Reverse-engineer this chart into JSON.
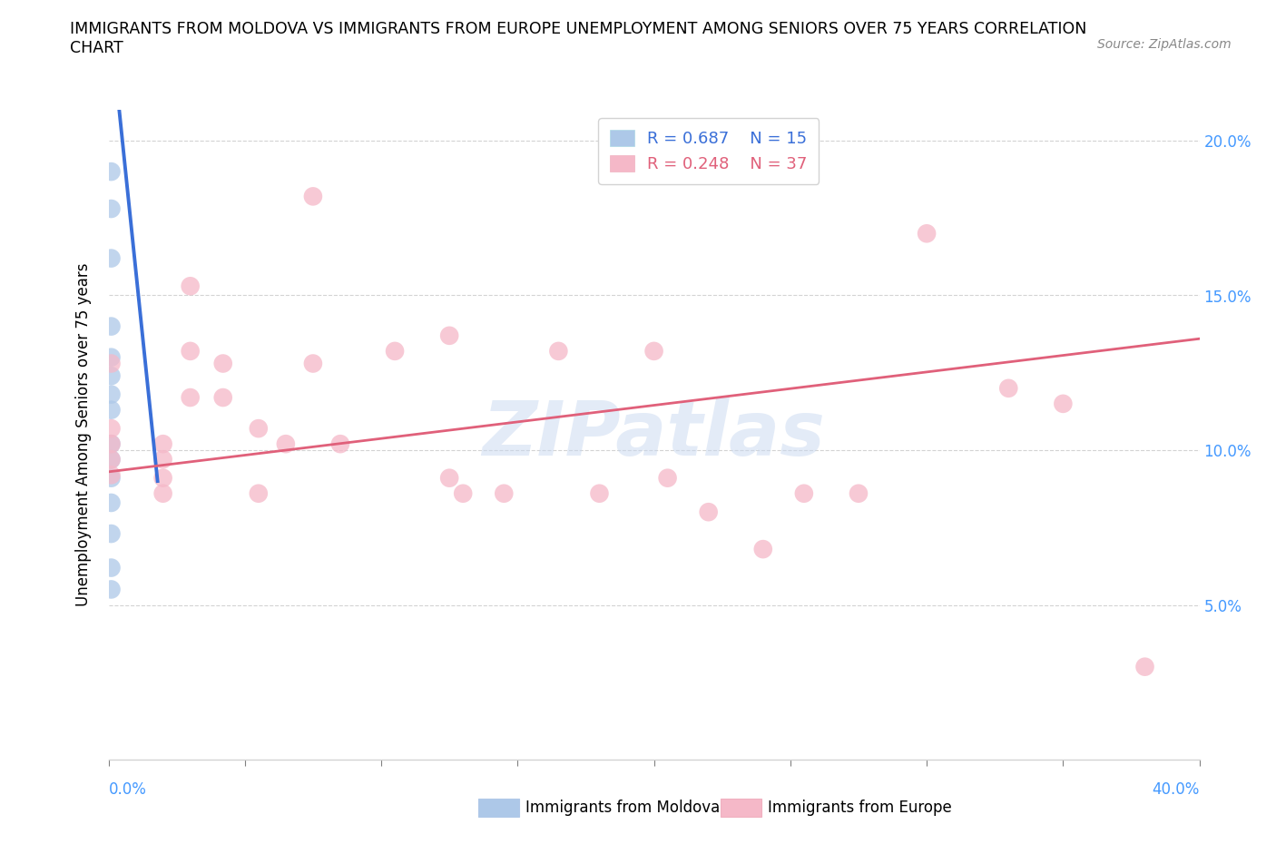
{
  "title_line1": "IMMIGRANTS FROM MOLDOVA VS IMMIGRANTS FROM EUROPE UNEMPLOYMENT AMONG SENIORS OVER 75 YEARS CORRELATION",
  "title_line2": "CHART",
  "source_text": "Source: ZipAtlas.com",
  "xlabel_bottom_left": "0.0%",
  "xlabel_bottom_right": "40.0%",
  "ylabel": "Unemployment Among Seniors over 75 years",
  "xmin": 0.0,
  "xmax": 0.4,
  "ymin": 0.0,
  "ymax": 0.21,
  "yticks": [
    0.05,
    0.1,
    0.15,
    0.2
  ],
  "ytick_labels": [
    "5.0%",
    "10.0%",
    "15.0%",
    "20.0%"
  ],
  "legend_r_moldova": "R = 0.687",
  "legend_n_moldova": "N = 15",
  "legend_r_europe": "R = 0.248",
  "legend_n_europe": "N = 37",
  "moldova_color": "#adc8e8",
  "europe_color": "#f5b8c8",
  "moldova_line_color": "#3a6fd8",
  "europe_line_color": "#e0607a",
  "watermark_color": "#c8d8f0",
  "watermark": "ZIPatlas",
  "moldova_scatter": [
    [
      0.001,
      0.19
    ],
    [
      0.001,
      0.178
    ],
    [
      0.001,
      0.162
    ],
    [
      0.001,
      0.14
    ],
    [
      0.001,
      0.13
    ],
    [
      0.001,
      0.124
    ],
    [
      0.001,
      0.118
    ],
    [
      0.001,
      0.113
    ],
    [
      0.001,
      0.102
    ],
    [
      0.001,
      0.097
    ],
    [
      0.001,
      0.091
    ],
    [
      0.001,
      0.083
    ],
    [
      0.001,
      0.073
    ],
    [
      0.001,
      0.062
    ],
    [
      0.001,
      0.055
    ]
  ],
  "europe_scatter": [
    [
      0.001,
      0.128
    ],
    [
      0.001,
      0.107
    ],
    [
      0.001,
      0.102
    ],
    [
      0.001,
      0.097
    ],
    [
      0.001,
      0.092
    ],
    [
      0.02,
      0.102
    ],
    [
      0.02,
      0.097
    ],
    [
      0.02,
      0.091
    ],
    [
      0.02,
      0.086
    ],
    [
      0.03,
      0.153
    ],
    [
      0.03,
      0.132
    ],
    [
      0.03,
      0.117
    ],
    [
      0.042,
      0.128
    ],
    [
      0.042,
      0.117
    ],
    [
      0.055,
      0.107
    ],
    [
      0.055,
      0.086
    ],
    [
      0.065,
      0.102
    ],
    [
      0.075,
      0.182
    ],
    [
      0.075,
      0.128
    ],
    [
      0.085,
      0.102
    ],
    [
      0.105,
      0.132
    ],
    [
      0.125,
      0.137
    ],
    [
      0.125,
      0.091
    ],
    [
      0.13,
      0.086
    ],
    [
      0.145,
      0.086
    ],
    [
      0.165,
      0.132
    ],
    [
      0.18,
      0.086
    ],
    [
      0.2,
      0.132
    ],
    [
      0.205,
      0.091
    ],
    [
      0.22,
      0.08
    ],
    [
      0.24,
      0.068
    ],
    [
      0.255,
      0.086
    ],
    [
      0.275,
      0.086
    ],
    [
      0.3,
      0.17
    ],
    [
      0.33,
      0.12
    ],
    [
      0.35,
      0.115
    ],
    [
      0.38,
      0.03
    ]
  ],
  "moldova_line_pts": [
    [
      0.001,
      0.235
    ],
    [
      0.018,
      0.09
    ]
  ],
  "europe_line_pts": [
    [
      0.0,
      0.093
    ],
    [
      0.4,
      0.136
    ]
  ]
}
